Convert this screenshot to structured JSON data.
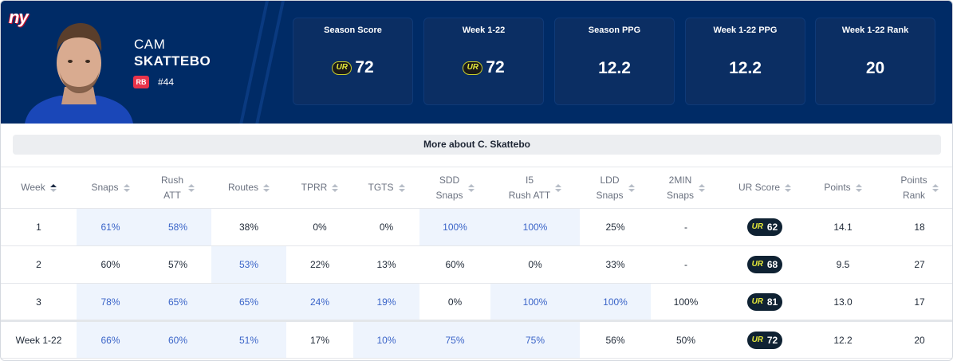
{
  "player": {
    "first_name": "CAM",
    "last_name": "SKATTEBO",
    "position": "RB",
    "jersey": "#44",
    "team_logo": "ny"
  },
  "stat_cards": [
    {
      "label": "Season Score",
      "value": "72",
      "badge": "UR"
    },
    {
      "label": "Week 1-22",
      "value": "72",
      "badge": "UR"
    },
    {
      "label": "Season PPG",
      "value": "12.2"
    },
    {
      "label": "Week 1-22 PPG",
      "value": "12.2"
    },
    {
      "label": "Week 1-22 Rank",
      "value": "20"
    }
  ],
  "more_about": "More about C. Skattebo",
  "table": {
    "columns": [
      {
        "label_lines": [
          "Week"
        ],
        "sort": "active"
      },
      {
        "label_lines": [
          "Snaps"
        ]
      },
      {
        "label_lines": [
          "Rush",
          "ATT"
        ]
      },
      {
        "label_lines": [
          "Routes"
        ]
      },
      {
        "label_lines": [
          "TPRR"
        ]
      },
      {
        "label_lines": [
          "TGTS"
        ]
      },
      {
        "label_lines": [
          "SDD",
          "Snaps"
        ]
      },
      {
        "label_lines": [
          "I5",
          "Rush ATT"
        ]
      },
      {
        "label_lines": [
          "LDD",
          "Snaps"
        ]
      },
      {
        "label_lines": [
          "2MIN",
          "Snaps"
        ]
      },
      {
        "label_lines": [
          "UR Score"
        ]
      },
      {
        "label_lines": [
          "Points"
        ]
      },
      {
        "label_lines": [
          "Points",
          "Rank"
        ]
      }
    ],
    "rows": [
      {
        "cells": [
          "1",
          "61%",
          "58%",
          "38%",
          "0%",
          "0%",
          "100%",
          "100%",
          "25%",
          "-",
          "62",
          "14.1",
          "18"
        ],
        "highlight": [
          1,
          2,
          6,
          7
        ]
      },
      {
        "cells": [
          "2",
          "60%",
          "57%",
          "53%",
          "22%",
          "13%",
          "60%",
          "0%",
          "33%",
          "-",
          "68",
          "9.5",
          "27"
        ],
        "highlight": [
          3
        ]
      },
      {
        "cells": [
          "3",
          "78%",
          "65%",
          "65%",
          "24%",
          "19%",
          "0%",
          "100%",
          "100%",
          "100%",
          "81",
          "13.0",
          "17"
        ],
        "highlight": [
          1,
          2,
          3,
          4,
          5,
          7,
          8
        ]
      },
      {
        "cells": [
          "Week 1-22",
          "66%",
          "60%",
          "51%",
          "17%",
          "10%",
          "75%",
          "75%",
          "56%",
          "50%",
          "72",
          "12.2",
          "20"
        ],
        "highlight": [
          1,
          2,
          3,
          5,
          6,
          7
        ],
        "total": true
      }
    ],
    "ur_badge_text": "UR"
  },
  "colors": {
    "header_bg": "#002b66",
    "highlight_bg": "#eef4fd",
    "highlight_text": "#3a64c8",
    "position_badge": "#e8334a"
  }
}
